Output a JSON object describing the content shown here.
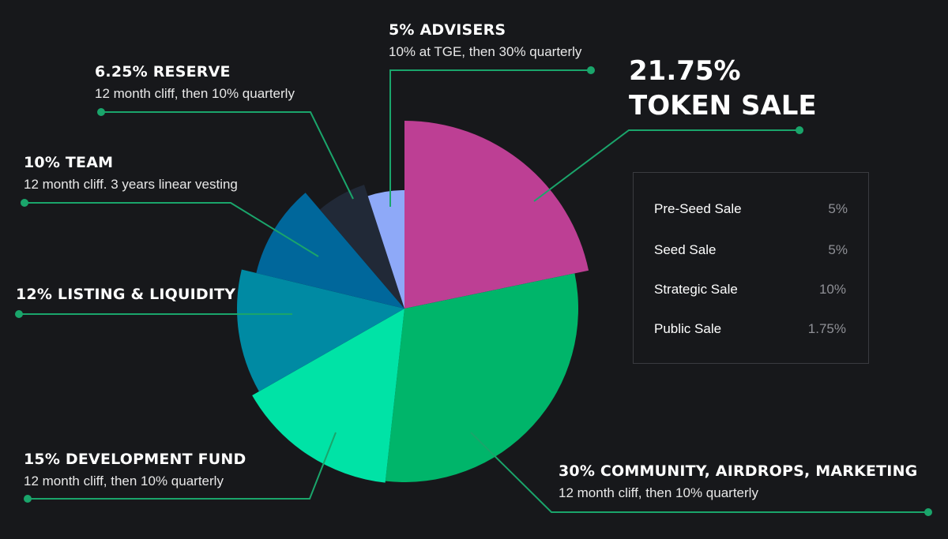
{
  "colors": {
    "background": "#17181b",
    "leader": "#1aa56b"
  },
  "chart_data": {
    "type": "pie",
    "title": "",
    "slices": [
      {
        "name": "TOKEN SALE",
        "value": 21.75,
        "color": "#bd3f94",
        "radius": 238
      },
      {
        "name": "COMMUNITY, AIRDROPS, MARKETING",
        "value": 30,
        "color": "#00b56a",
        "radius": 220
      },
      {
        "name": "DEVELOPMENT FUND",
        "value": 15,
        "color": "#00e3a6",
        "radius": 222
      },
      {
        "name": "LISTING & LIQUIDITY",
        "value": 12,
        "color": "#008aa3",
        "radius": 212
      },
      {
        "name": "TEAM",
        "value": 10,
        "color": "#00679b",
        "radius": 193
      },
      {
        "name": "RESERVE",
        "value": 6.25,
        "color": "#212937",
        "radius": 165
      },
      {
        "name": "ADVISERS",
        "value": 5,
        "color": "#8ea9f8",
        "radius": 150
      }
    ]
  },
  "labels": {
    "advisers": {
      "title": "5% ADVISERS",
      "sub": "10% at TGE, then 30% quarterly"
    },
    "reserve": {
      "title": "6.25% RESERVE",
      "sub": "12 month cliff, then 10% quarterly"
    },
    "team": {
      "title": "10% TEAM",
      "sub": "12 month cliff. 3 years linear vesting"
    },
    "listing": {
      "title": "12% LISTING & LIQUIDITY"
    },
    "dev": {
      "title": "15% DEVELOPMENT FUND",
      "sub": "12 month cliff, then 10% quarterly"
    },
    "community": {
      "title": "30% COMMUNITY, AIRDROPS, MARKETING",
      "sub": "12 month cliff, then 10% quarterly"
    },
    "token_sale": {
      "pct": "21.75%",
      "title": "TOKEN SALE"
    }
  },
  "sale_breakdown": [
    {
      "name": "Pre-Seed Sale",
      "value": "5%"
    },
    {
      "name": "Seed Sale",
      "value": "5%"
    },
    {
      "name": "Strategic Sale",
      "value": "10%"
    },
    {
      "name": "Public Sale",
      "value": "1.75%"
    }
  ]
}
